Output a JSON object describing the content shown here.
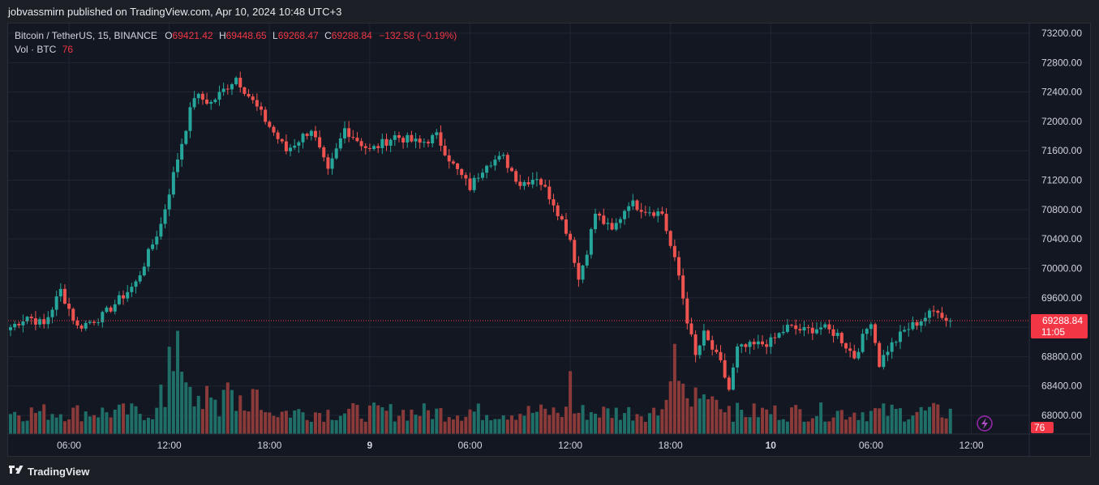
{
  "header": {
    "publisher_line": "jobvassmirn published on TradingView.com, Apr 10, 2024 10:48 UTC+3"
  },
  "legend": {
    "symbol": "Bitcoin / TetherUS, 15, BINANCE",
    "open_label": "O",
    "open": "69421.42",
    "high_label": "H",
    "high": "69448.65",
    "low_label": "L",
    "low": "69268.47",
    "close_label": "C",
    "close": "69288.84",
    "change": "−132.58 (−0.19%)",
    "volume_label": "Vol · BTC",
    "volume": "76"
  },
  "footer": {
    "brand": "TradingView"
  },
  "colors": {
    "up": "#26a69a",
    "down": "#ef5350",
    "up_vol": "#1f6f68",
    "down_vol": "#8b3a3a",
    "price_tag": "#f23645"
  },
  "chart_data": {
    "type": "candlestick",
    "title": "Bitcoin / TetherUS, 15, BINANCE",
    "interval": "15",
    "y_axis": {
      "side": "right",
      "range": [
        67800,
        73300
      ],
      "ticks": [
        "68000.00",
        "68400.00",
        "68800.00",
        "69200.00",
        "69600.00",
        "70000.00",
        "70400.00",
        "70800.00",
        "71200.00",
        "71600.00",
        "72000.00",
        "72400.00",
        "72800.00",
        "73200.00"
      ]
    },
    "x_axis": {
      "ticks": [
        {
          "i": 14,
          "label": "06:00",
          "bold": false
        },
        {
          "i": 38,
          "label": "12:00",
          "bold": false
        },
        {
          "i": 62,
          "label": "18:00",
          "bold": false
        },
        {
          "i": 86,
          "label": "9",
          "bold": true
        },
        {
          "i": 110,
          "label": "06:00",
          "bold": false
        },
        {
          "i": 134,
          "label": "12:00",
          "bold": false
        },
        {
          "i": 158,
          "label": "18:00",
          "bold": false
        },
        {
          "i": 182,
          "label": "10",
          "bold": true
        },
        {
          "i": 206,
          "label": "06:00",
          "bold": false
        },
        {
          "i": 230,
          "label": "12:00",
          "bold": false
        }
      ]
    },
    "last_price": "69288.84",
    "last_price_value": 69288.84,
    "countdown": "11:05",
    "last_volume": "76",
    "grid": true,
    "close_anchors": [
      [
        0,
        69200
      ],
      [
        4,
        69350
      ],
      [
        8,
        69230
      ],
      [
        12,
        69700
      ],
      [
        16,
        69200
      ],
      [
        22,
        69350
      ],
      [
        30,
        69800
      ],
      [
        36,
        70600
      ],
      [
        40,
        71500
      ],
      [
        44,
        72350
      ],
      [
        48,
        72250
      ],
      [
        54,
        72600
      ],
      [
        60,
        72100
      ],
      [
        66,
        71600
      ],
      [
        72,
        71900
      ],
      [
        76,
        71300
      ],
      [
        80,
        71900
      ],
      [
        86,
        71600
      ],
      [
        92,
        71800
      ],
      [
        98,
        71700
      ],
      [
        102,
        71800
      ],
      [
        106,
        71400
      ],
      [
        110,
        71100
      ],
      [
        114,
        71450
      ],
      [
        118,
        71500
      ],
      [
        122,
        71150
      ],
      [
        126,
        71250
      ],
      [
        130,
        70900
      ],
      [
        134,
        70400
      ],
      [
        136,
        69850
      ],
      [
        138,
        70250
      ],
      [
        140,
        70750
      ],
      [
        144,
        70500
      ],
      [
        148,
        70900
      ],
      [
        152,
        70800
      ],
      [
        156,
        70750
      ],
      [
        158,
        70300
      ],
      [
        160,
        69900
      ],
      [
        162,
        69300
      ],
      [
        164,
        68800
      ],
      [
        166,
        69100
      ],
      [
        170,
        68700
      ],
      [
        172,
        68350
      ],
      [
        174,
        68900
      ],
      [
        178,
        68950
      ],
      [
        182,
        69000
      ],
      [
        186,
        69200
      ],
      [
        190,
        69150
      ],
      [
        194,
        69200
      ],
      [
        198,
        69100
      ],
      [
        202,
        68800
      ],
      [
        206,
        69300
      ],
      [
        208,
        68700
      ],
      [
        210,
        68900
      ],
      [
        214,
        69150
      ],
      [
        218,
        69300
      ],
      [
        222,
        69450
      ],
      [
        224,
        69290
      ]
    ],
    "volume_spikes": [
      [
        38,
        8
      ],
      [
        39,
        5
      ],
      [
        40,
        8
      ],
      [
        41,
        5
      ],
      [
        42,
        4
      ],
      [
        134,
        5
      ],
      [
        158,
        4
      ],
      [
        159,
        7
      ],
      [
        160,
        5
      ],
      [
        165,
        3
      ],
      [
        166,
        3
      ],
      [
        61,
        2
      ],
      [
        110,
        2
      ]
    ]
  }
}
